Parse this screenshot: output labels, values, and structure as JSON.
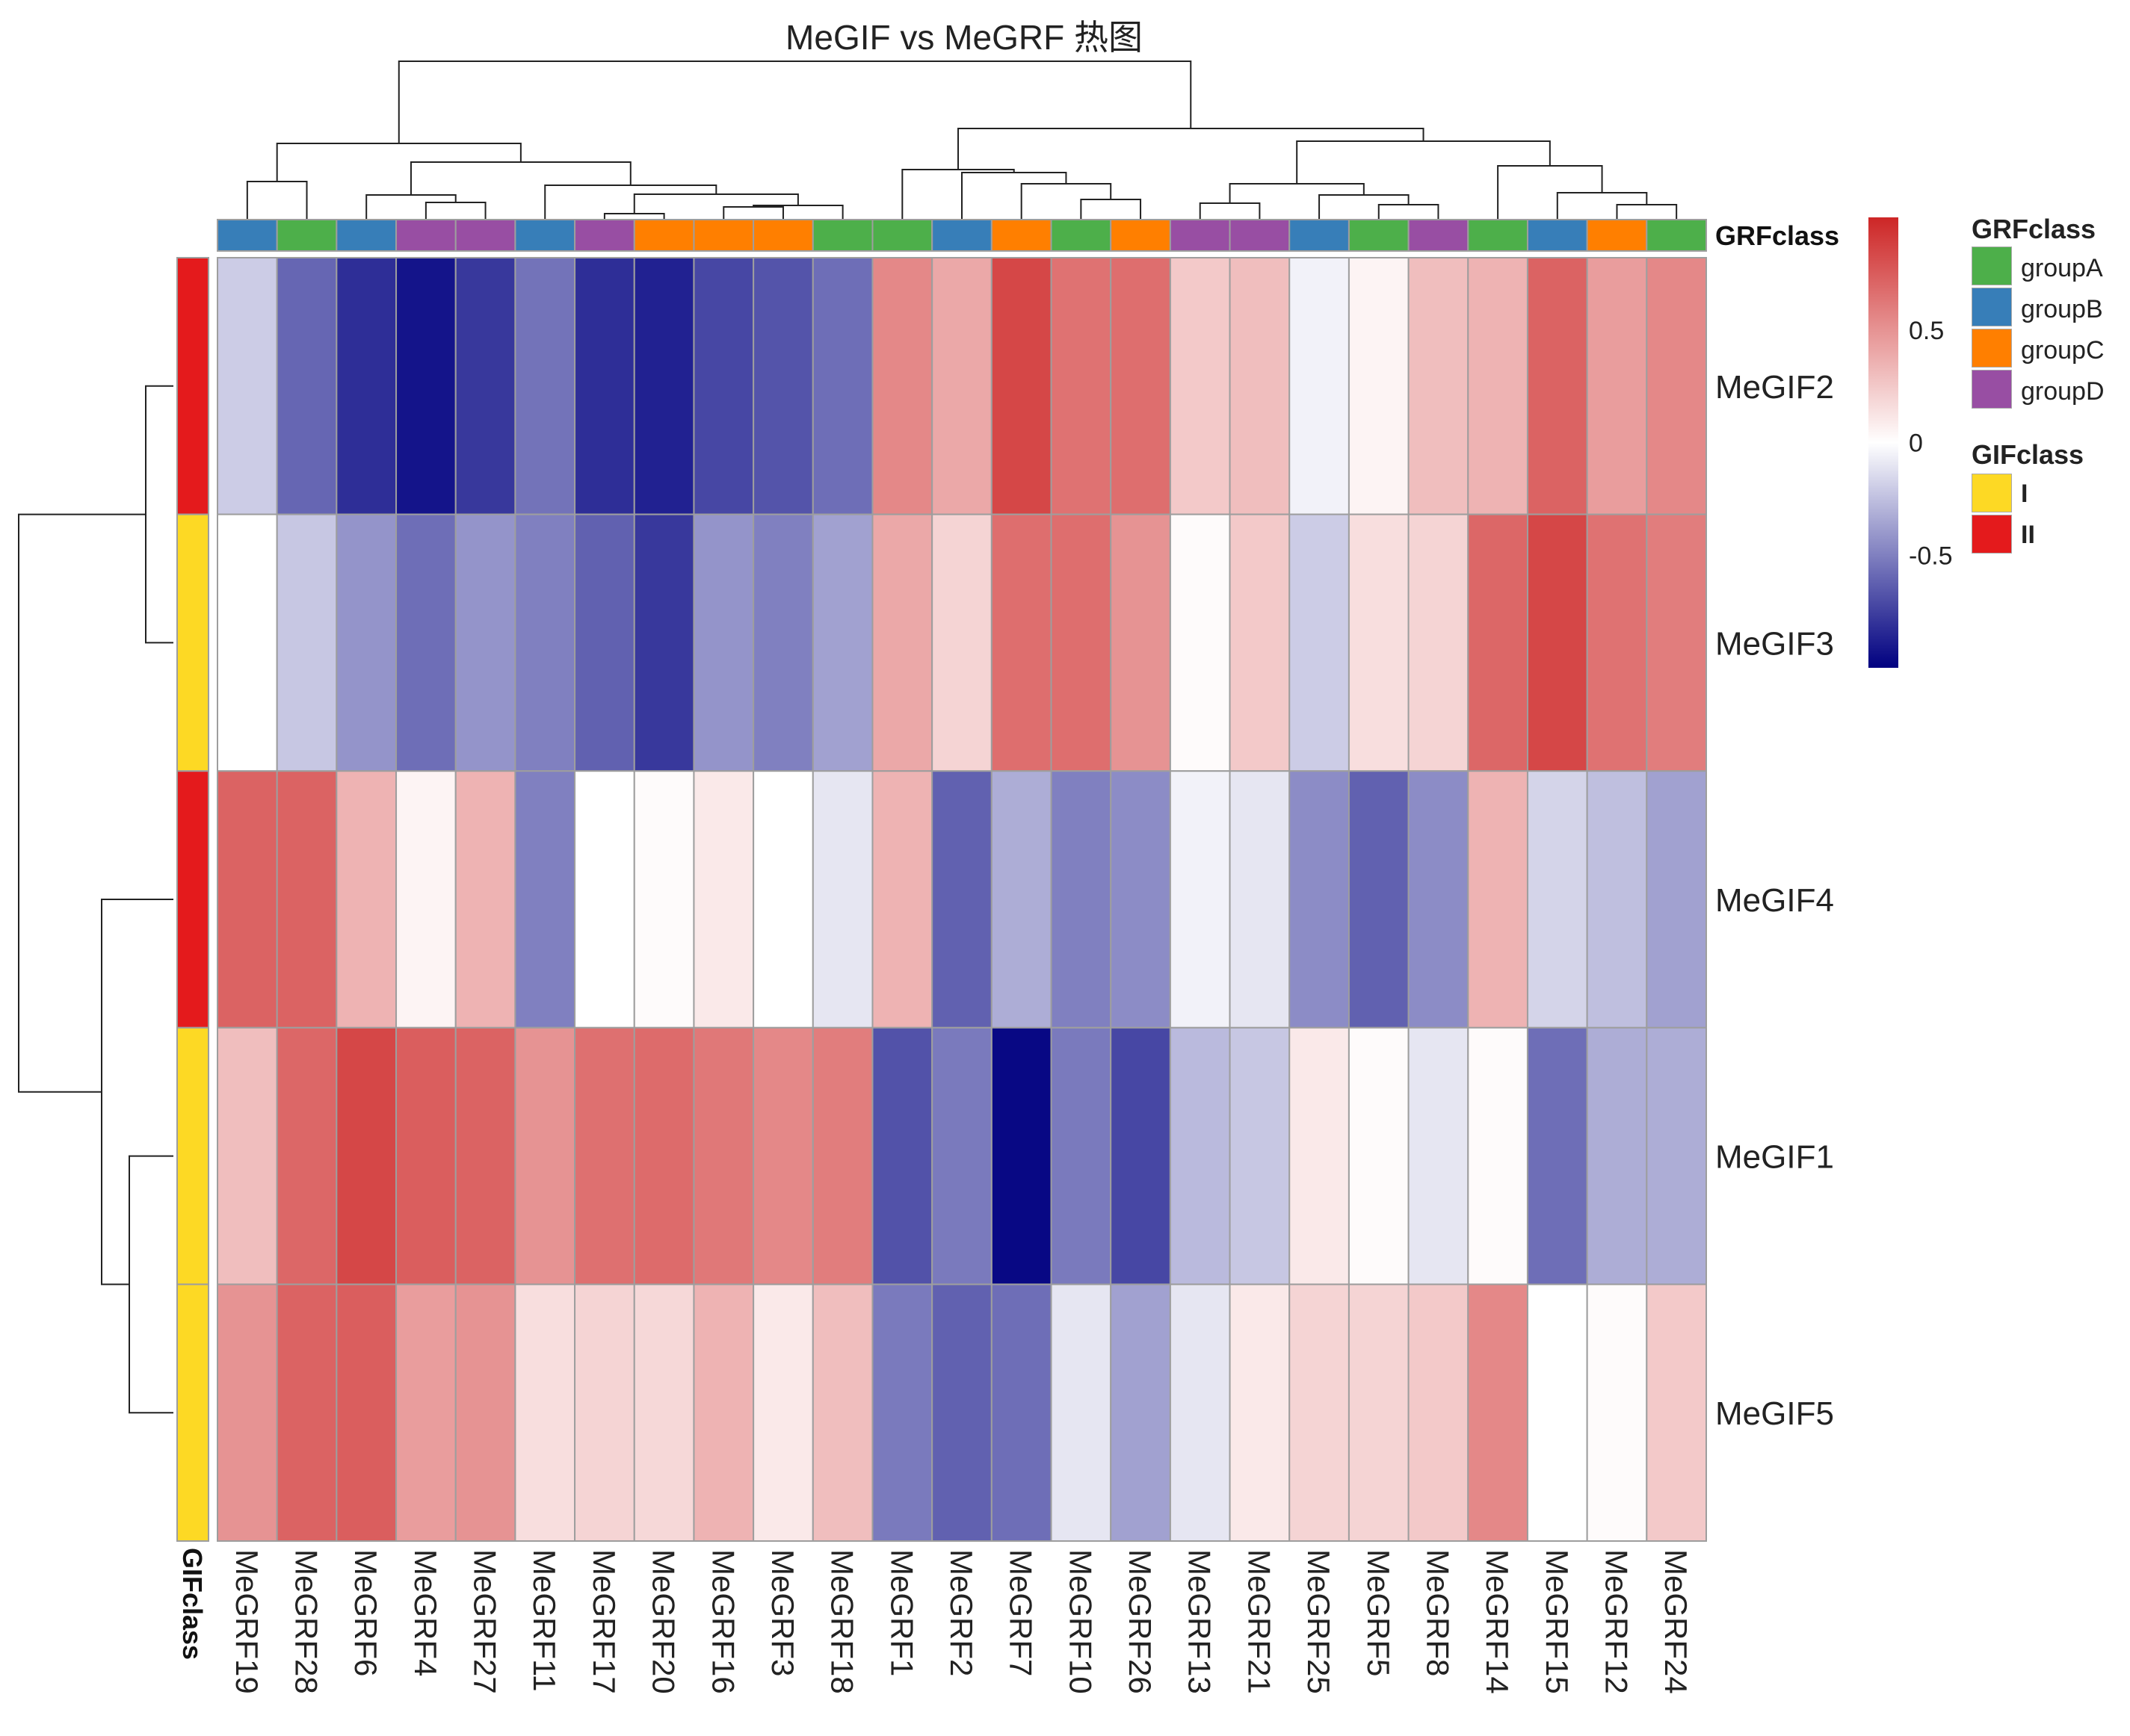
{
  "chart_data": {
    "type": "heatmap",
    "title": "MeGIF vs MeGRF 热图",
    "columns": [
      "MeGRF19",
      "MeGRF28",
      "MeGRF6",
      "MeGRF4",
      "MeGRF27",
      "MeGRF11",
      "MeGRF17",
      "MeGRF20",
      "MeGRF16",
      "MeGRF3",
      "MeGRF18",
      "MeGRF1",
      "MeGRF2",
      "MeGRF7",
      "MeGRF10",
      "MeGRF26",
      "MeGRF13",
      "MeGRF21",
      "MeGRF25",
      "MeGRF5",
      "MeGRF8",
      "MeGRF14",
      "MeGRF15",
      "MeGRF12",
      "MeGRF24"
    ],
    "rows": [
      "MeGIF2",
      "MeGIF3",
      "MeGIF4",
      "MeGIF1",
      "MeGIF5"
    ],
    "values": [
      [
        -0.2,
        -0.6,
        -0.82,
        -0.92,
        -0.78,
        -0.55,
        -0.82,
        -0.87,
        -0.72,
        -0.67,
        -0.57,
        0.55,
        0.4,
        0.85,
        0.65,
        0.67,
        0.25,
        0.3,
        -0.05,
        0.05,
        0.3,
        0.35,
        0.72,
        0.45,
        0.55
      ],
      [
        0.0,
        -0.22,
        -0.42,
        -0.57,
        -0.42,
        -0.5,
        -0.62,
        -0.78,
        -0.42,
        -0.5,
        -0.37,
        0.4,
        0.2,
        0.67,
        0.67,
        0.5,
        0.02,
        0.25,
        -0.2,
        0.15,
        0.2,
        0.7,
        0.85,
        0.65,
        0.6
      ],
      [
        0.72,
        0.72,
        0.35,
        0.05,
        0.35,
        -0.5,
        0.0,
        0.02,
        0.1,
        0.0,
        -0.1,
        0.35,
        -0.62,
        -0.32,
        -0.5,
        -0.45,
        -0.05,
        -0.1,
        -0.45,
        -0.62,
        -0.45,
        0.35,
        -0.17,
        -0.25,
        -0.37
      ],
      [
        0.3,
        0.7,
        0.85,
        0.74,
        0.72,
        0.5,
        0.66,
        0.68,
        0.62,
        0.55,
        0.6,
        -0.68,
        -0.52,
        -0.97,
        -0.52,
        -0.72,
        -0.27,
        -0.22,
        0.1,
        0.02,
        -0.1,
        0.02,
        -0.57,
        -0.32,
        -0.32
      ],
      [
        0.5,
        0.72,
        0.74,
        0.45,
        0.5,
        0.15,
        0.2,
        0.18,
        0.35,
        0.1,
        0.3,
        -0.52,
        -0.62,
        -0.57,
        -0.1,
        -0.37,
        -0.1,
        0.1,
        0.2,
        0.2,
        0.25,
        0.55,
        0.0,
        0.02,
        0.25
      ]
    ],
    "color_scale": {
      "low": "#000080",
      "mid": "#FFFFFF",
      "high": "#CD2626",
      "range": [
        -1,
        1
      ],
      "ticks": [
        "-0.5",
        "0",
        "0.5"
      ],
      "tick_values": [
        -0.5,
        0,
        0.5
      ]
    },
    "column_annotation": {
      "title": "GRFclass",
      "values": [
        "groupB",
        "groupA",
        "groupB",
        "groupD",
        "groupD",
        "groupB",
        "groupD",
        "groupC",
        "groupC",
        "groupC",
        "groupA",
        "groupA",
        "groupB",
        "groupC",
        "groupA",
        "groupC",
        "groupD",
        "groupD",
        "groupB",
        "groupA",
        "groupD",
        "groupA",
        "groupB",
        "groupC",
        "groupA"
      ],
      "legend": [
        {
          "label": "groupA",
          "color": "#4DAF4A"
        },
        {
          "label": "groupB",
          "color": "#377EB8"
        },
        {
          "label": "groupC",
          "color": "#FF7F00"
        },
        {
          "label": "groupD",
          "color": "#984EA3"
        }
      ]
    },
    "row_annotation": {
      "title": "GIFclass",
      "values": [
        "II",
        "I",
        "II",
        "I",
        "I"
      ],
      "legend": [
        {
          "label": "I",
          "color": "#FDD924"
        },
        {
          "label": "II",
          "color": "#E41A1C"
        }
      ]
    },
    "dendrograms": {
      "rows": true,
      "columns": true
    }
  }
}
